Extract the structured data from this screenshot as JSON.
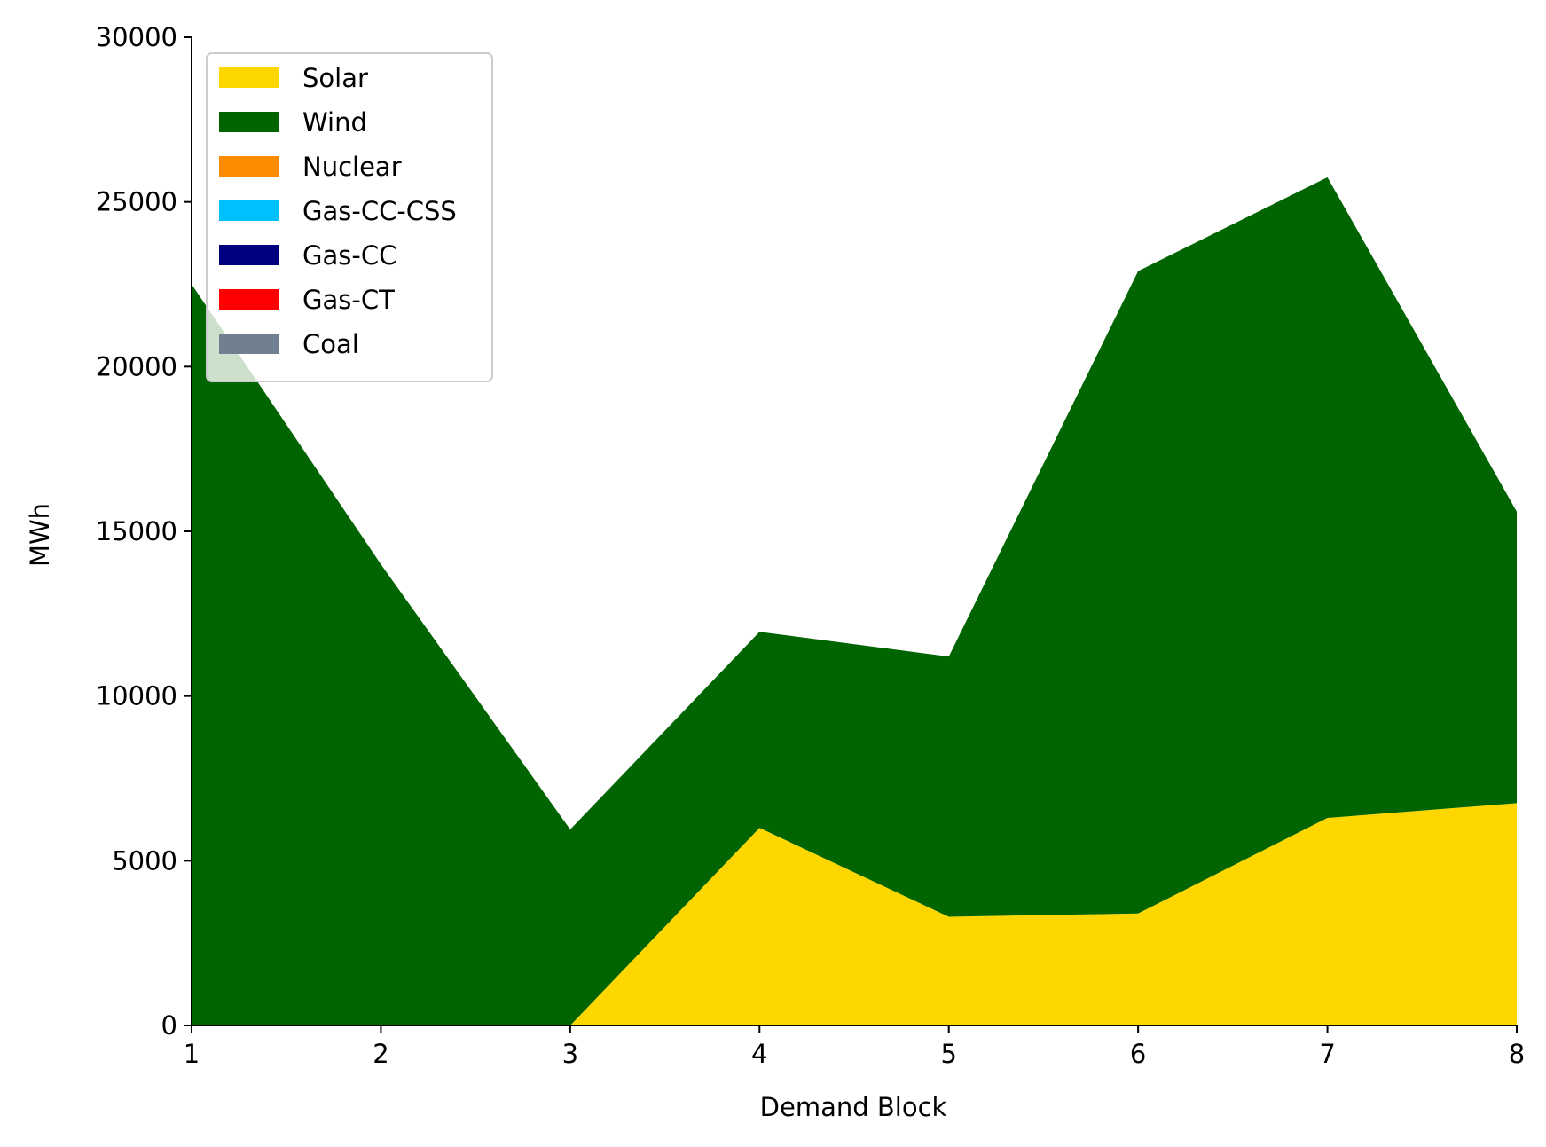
{
  "chart_data": {
    "type": "area",
    "stacked": true,
    "title": "",
    "xlabel": "Demand Block",
    "ylabel": "MWh",
    "x": [
      1,
      2,
      3,
      4,
      5,
      6,
      7,
      8
    ],
    "xlim": [
      1,
      8
    ],
    "ylim": [
      0,
      30000
    ],
    "x_ticks": [
      "1",
      "2",
      "3",
      "4",
      "5",
      "6",
      "7",
      "8"
    ],
    "y_ticks": [
      "0",
      "5000",
      "10000",
      "15000",
      "20000",
      "25000",
      "30000"
    ],
    "grid": false,
    "legend_position": "upper-left",
    "series": [
      {
        "name": "Solar",
        "color": "#FFD700",
        "values": [
          0,
          0,
          0,
          6000,
          3300,
          3400,
          6300,
          6750
        ]
      },
      {
        "name": "Wind",
        "color": "#006400",
        "values": [
          22500,
          14000,
          5950,
          5950,
          7900,
          19500,
          19450,
          8850
        ]
      },
      {
        "name": "Nuclear",
        "color": "#FF8C00",
        "values": [
          0,
          0,
          0,
          0,
          0,
          0,
          0,
          0
        ]
      },
      {
        "name": "Gas-CC-CSS",
        "color": "#00BFFF",
        "values": [
          0,
          0,
          0,
          0,
          0,
          0,
          0,
          0
        ]
      },
      {
        "name": "Gas-CC",
        "color": "#000080",
        "values": [
          0,
          0,
          0,
          0,
          0,
          0,
          0,
          0
        ]
      },
      {
        "name": "Gas-CT",
        "color": "#FF0000",
        "values": [
          0,
          0,
          0,
          0,
          0,
          0,
          0,
          0
        ]
      },
      {
        "name": "Coal",
        "color": "#708090",
        "values": [
          0,
          0,
          0,
          0,
          0,
          0,
          0,
          0
        ]
      }
    ]
  }
}
